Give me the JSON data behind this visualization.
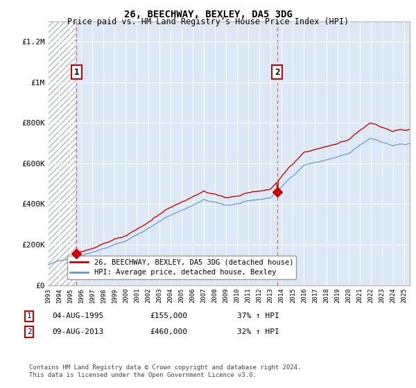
{
  "title": "26, BEECHWAY, BEXLEY, DA5 3DG",
  "subtitle": "Price paid vs. HM Land Registry’s House Price Index (HPI)",
  "title_fontsize": 10,
  "subtitle_fontsize": 8.5,
  "xlim": [
    1993.0,
    2025.5
  ],
  "ylim": [
    0,
    1300000
  ],
  "yticks": [
    0,
    200000,
    400000,
    600000,
    800000,
    1000000,
    1200000
  ],
  "ytick_labels": [
    "£0",
    "£200K",
    "£400K",
    "£600K",
    "£800K",
    "£1M",
    "£1.2M"
  ],
  "xtick_years": [
    1993,
    1994,
    1995,
    1996,
    1997,
    1998,
    1999,
    2000,
    2001,
    2002,
    2003,
    2004,
    2005,
    2006,
    2007,
    2008,
    2009,
    2010,
    2011,
    2012,
    2013,
    2014,
    2015,
    2016,
    2017,
    2018,
    2019,
    2020,
    2021,
    2022,
    2023,
    2024,
    2025
  ],
  "sale1_year": 1995.58,
  "sale1_price": 155000,
  "sale1_label": "1",
  "sale2_year": 2013.58,
  "sale2_price": 460000,
  "sale2_label": "2",
  "line_color_red": "#cc0000",
  "line_color_blue": "#6699cc",
  "bg_color": "#dce8f5",
  "hatch_bg": "#ffffff",
  "legend_label_red": "26, BEECHWAY, BEXLEY, DA5 3DG (detached house)",
  "legend_label_blue": "HPI: Average price, detached house, Bexley",
  "footnote_label1": "1",
  "footnote_date1": "04-AUG-1995",
  "footnote_price1": "£155,000",
  "footnote_hpi1": "37% ↑ HPI",
  "footnote_label2": "2",
  "footnote_date2": "09-AUG-2013",
  "footnote_price2": "£460,000",
  "footnote_hpi2": "32% ↑ HPI",
  "copyright": "Contains HM Land Registry data © Crown copyright and database right 2024.\nThis data is licensed under the Open Government Licence v3.0."
}
